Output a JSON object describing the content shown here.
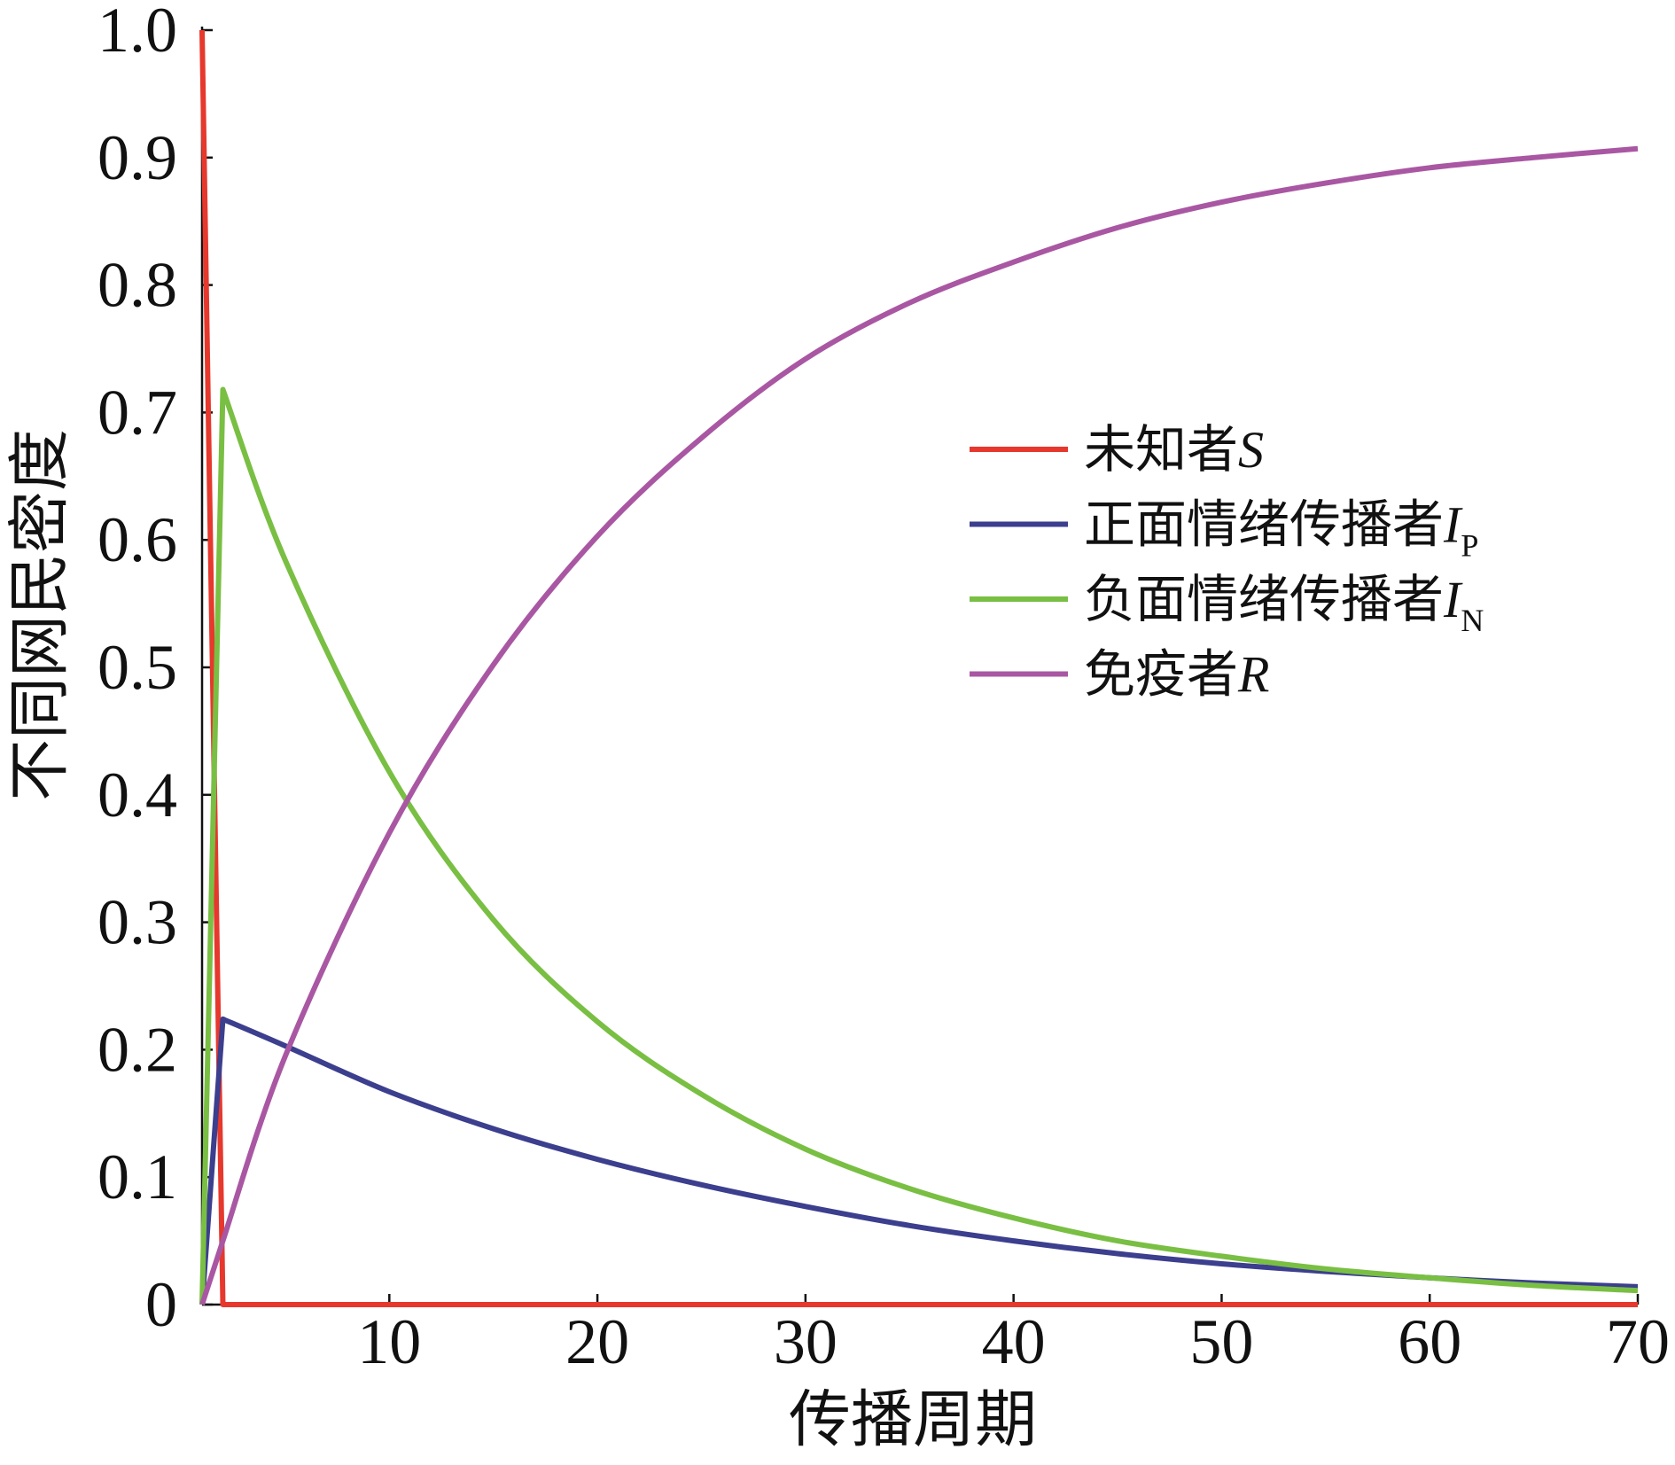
{
  "chart_data": {
    "type": "line",
    "xlabel": "传播周期",
    "ylabel": "不同网民密度",
    "xlim": [
      1,
      70
    ],
    "ylim": [
      0,
      1.0
    ],
    "grid": false,
    "legend_position": "center-right",
    "xticks": [
      10,
      20,
      30,
      40,
      50,
      60,
      70
    ],
    "xtick_labels": [
      "10",
      "20",
      "30",
      "40",
      "50",
      "60",
      "70"
    ],
    "yticks": [
      0,
      0.1,
      0.2,
      0.3,
      0.4,
      0.5,
      0.6,
      0.7,
      0.8,
      0.9,
      1.0
    ],
    "ytick_labels": [
      "0",
      "0.1",
      "0.2",
      "0.3",
      "0.4",
      "0.5",
      "0.6",
      "0.7",
      "0.8",
      "0.9",
      "1.0"
    ],
    "x": [
      1,
      2,
      5,
      10,
      15,
      20,
      25,
      30,
      35,
      40,
      45,
      50,
      55,
      60,
      65,
      70
    ],
    "series": [
      {
        "name": "未知者",
        "symbol": "S",
        "color": "#e6382d",
        "values": [
          1.0,
          0,
          0,
          0,
          0,
          0,
          0,
          0,
          0,
          0,
          0,
          0,
          0,
          0,
          0,
          0
        ]
      },
      {
        "name": "正面情绪传播者",
        "symbol": "I",
        "subscript": "P",
        "color": "#3c3e8e",
        "values": [
          0,
          0.224,
          0.203,
          0.167,
          0.138,
          0.114,
          0.094,
          0.077,
          0.062,
          0.05,
          0.04,
          0.032,
          0.026,
          0.021,
          0.017,
          0.014
        ]
      },
      {
        "name": "负面情绪传播者",
        "symbol": "I",
        "subscript": "N",
        "color": "#79bf43",
        "values": [
          0,
          0.718,
          0.584,
          0.418,
          0.302,
          0.222,
          0.165,
          0.122,
          0.091,
          0.068,
          0.05,
          0.038,
          0.028,
          0.021,
          0.015,
          0.011
        ]
      },
      {
        "name": "免疫者",
        "symbol": "R",
        "color": "#a957a3",
        "values": [
          0,
          0.05,
          0.195,
          0.37,
          0.502,
          0.603,
          0.68,
          0.742,
          0.786,
          0.818,
          0.845,
          0.865,
          0.88,
          0.892,
          0.9,
          0.907
        ]
      }
    ]
  }
}
